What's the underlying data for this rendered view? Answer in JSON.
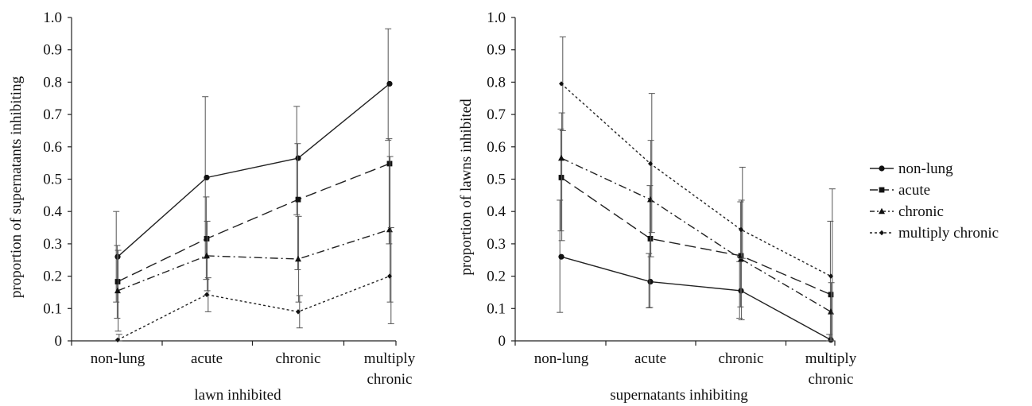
{
  "chart_data": [
    {
      "type": "line",
      "categories": [
        [
          "non-lung"
        ],
        [
          "acute"
        ],
        [
          "chronic"
        ],
        [
          "multiply",
          "chronic"
        ]
      ],
      "xlabel": "lawn inhibited",
      "ylabel": "proportion of supernatants inhibiting",
      "ylim": [
        0,
        1.0
      ],
      "yticks": [
        "0",
        "0.1",
        "0.2",
        "0.3",
        "0.4",
        "0.5",
        "0.6",
        "0.7",
        "0.8",
        "0.9",
        "1.0"
      ],
      "grid": false,
      "series": [
        {
          "name": "non-lung",
          "values": [
            0.26,
            0.505,
            0.565,
            0.795
          ],
          "err_low": [
            0.12,
            0.255,
            0.39,
            0.62
          ],
          "err_high": [
            0.4,
            0.755,
            0.725,
            0.965
          ]
        },
        {
          "name": "acute",
          "values": [
            0.183,
            0.316,
            0.437,
            0.548
          ],
          "err_low": [
            0.07,
            0.19,
            0.22,
            0.3
          ],
          "err_high": [
            0.295,
            0.445,
            0.61,
            0.625
          ]
        },
        {
          "name": "chronic",
          "values": [
            0.155,
            0.263,
            0.253,
            0.344
          ],
          "err_low": [
            0.03,
            0.155,
            0.12,
            0.12
          ],
          "err_high": [
            0.28,
            0.37,
            0.385,
            0.57
          ]
        },
        {
          "name": "multiply chronic",
          "values": [
            0.003,
            0.143,
            0.09,
            0.2
          ],
          "err_low": [
            0.0,
            0.09,
            0.04,
            0.053
          ],
          "err_high": [
            0.02,
            0.195,
            0.14,
            0.35
          ]
        }
      ]
    },
    {
      "type": "line",
      "categories": [
        [
          "non-lung"
        ],
        [
          "acute"
        ],
        [
          "chronic"
        ],
        [
          "multiply",
          "chronic"
        ]
      ],
      "xlabel": "supernatants inhibiting",
      "ylabel": "proportion of lawns inhibited",
      "ylim": [
        0,
        1.0
      ],
      "yticks": [
        "0",
        "0.1",
        "0.2",
        "0.3",
        "0.4",
        "0.5",
        "0.6",
        "0.7",
        "0.8",
        "0.9",
        "1.0"
      ],
      "grid": false,
      "series": [
        {
          "name": "non-lung",
          "values": [
            0.26,
            0.183,
            0.155,
            0.003
          ],
          "err_low": [
            0.088,
            0.102,
            0.07,
            0.0
          ],
          "err_high": [
            0.435,
            0.27,
            0.245,
            0.02
          ]
        },
        {
          "name": "acute",
          "values": [
            0.505,
            0.316,
            0.263,
            0.143
          ],
          "err_low": [
            0.34,
            0.103,
            0.105,
            0.0
          ],
          "err_high": [
            0.655,
            0.48,
            0.43,
            0.37
          ]
        },
        {
          "name": "chronic",
          "values": [
            0.565,
            0.437,
            0.253,
            0.09
          ],
          "err_low": [
            0.31,
            0.26,
            0.065,
            0.0
          ],
          "err_high": [
            0.705,
            0.62,
            0.435,
            0.18
          ]
        },
        {
          "name": "multiply chronic",
          "values": [
            0.795,
            0.548,
            0.344,
            0.2
          ],
          "err_low": [
            0.65,
            0.335,
            0.255,
            0.0
          ],
          "err_high": [
            0.94,
            0.765,
            0.537,
            0.47
          ]
        }
      ]
    }
  ],
  "legend": {
    "placement": "right",
    "items": [
      "non-lung",
      "acute",
      "chronic",
      "multiply chronic"
    ]
  }
}
